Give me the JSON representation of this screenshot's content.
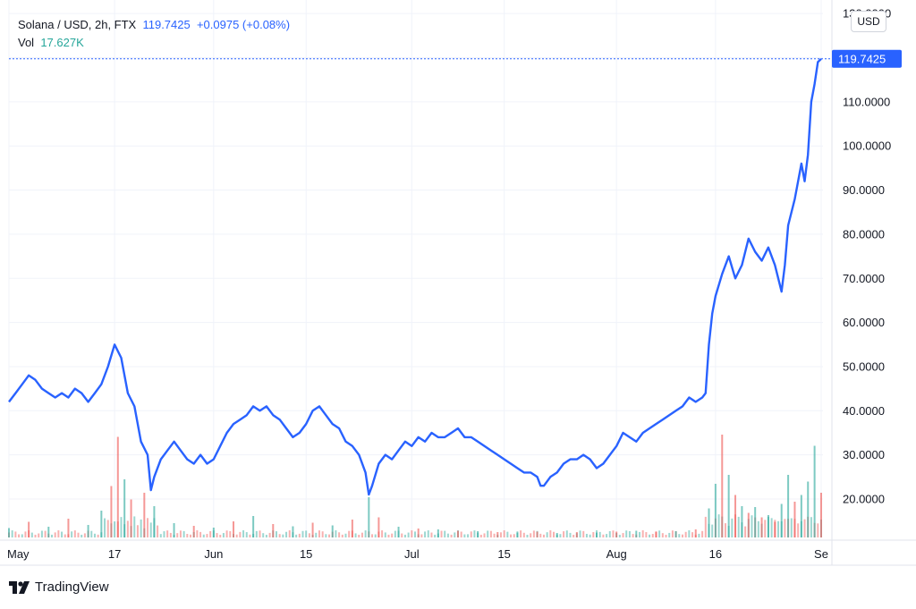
{
  "legend": {
    "symbol": "Solana / USD, 2h, FTX",
    "last": "119.7425",
    "change": "+0.0975 (+0.08%)",
    "vol_label": "Vol",
    "vol_value": "17.627K"
  },
  "currency_button": "USD",
  "last_price_label": "119.7425",
  "brand": "TradingView",
  "colors": {
    "line": "#2962ff",
    "grid": "#f0f3fa",
    "up_volume": "#26a69a",
    "down_volume": "#ef5350",
    "price_tag": "#2962ff"
  },
  "chart_data": {
    "type": "line",
    "title": "Solana / USD, 2h, FTX",
    "xlabel": "",
    "ylabel": "",
    "y_ticks": [
      "20.0000",
      "30.0000",
      "40.0000",
      "50.0000",
      "60.0000",
      "70.0000",
      "80.0000",
      "90.0000",
      "100.0000",
      "110.0000",
      "130.0000"
    ],
    "ylim": [
      11,
      131
    ],
    "x_ticks": [
      {
        "label": "May",
        "day": 0
      },
      {
        "label": "17",
        "day": 16
      },
      {
        "label": "Jun",
        "day": 31
      },
      {
        "label": "15",
        "day": 45
      },
      {
        "label": "Jul",
        "day": 61
      },
      {
        "label": "15",
        "day": 75
      },
      {
        "label": "Aug",
        "day": 92
      },
      {
        "label": "16",
        "day": 107
      },
      {
        "label": "Se",
        "day": 123
      }
    ],
    "xlim": [
      0,
      123
    ],
    "grid": true,
    "series": [
      {
        "values": [
          [
            0,
            42
          ],
          [
            1,
            44
          ],
          [
            2,
            46
          ],
          [
            3,
            48
          ],
          [
            4,
            47
          ],
          [
            5,
            45
          ],
          [
            6,
            44
          ],
          [
            7,
            43
          ],
          [
            8,
            44
          ],
          [
            9,
            43
          ],
          [
            10,
            45
          ],
          [
            11,
            44
          ],
          [
            12,
            42
          ],
          [
            13,
            44
          ],
          [
            14,
            46
          ],
          [
            15,
            50
          ],
          [
            16,
            55
          ],
          [
            17,
            52
          ],
          [
            18,
            44
          ],
          [
            19,
            41
          ],
          [
            20,
            33
          ],
          [
            21,
            30
          ],
          [
            21.5,
            22
          ],
          [
            22,
            25
          ],
          [
            23,
            29
          ],
          [
            24,
            31
          ],
          [
            25,
            33
          ],
          [
            26,
            31
          ],
          [
            27,
            29
          ],
          [
            28,
            28
          ],
          [
            29,
            30
          ],
          [
            30,
            28
          ],
          [
            31,
            29
          ],
          [
            32,
            32
          ],
          [
            33,
            35
          ],
          [
            34,
            37
          ],
          [
            35,
            38
          ],
          [
            36,
            39
          ],
          [
            37,
            41
          ],
          [
            38,
            40
          ],
          [
            39,
            41
          ],
          [
            40,
            39
          ],
          [
            41,
            38
          ],
          [
            42,
            36
          ],
          [
            43,
            34
          ],
          [
            44,
            35
          ],
          [
            45,
            37
          ],
          [
            46,
            40
          ],
          [
            47,
            41
          ],
          [
            48,
            39
          ],
          [
            49,
            37
          ],
          [
            50,
            36
          ],
          [
            51,
            33
          ],
          [
            52,
            32
          ],
          [
            53,
            30
          ],
          [
            54,
            26
          ],
          [
            54.5,
            21
          ],
          [
            55,
            23
          ],
          [
            56,
            28
          ],
          [
            57,
            30
          ],
          [
            58,
            29
          ],
          [
            59,
            31
          ],
          [
            60,
            33
          ],
          [
            61,
            32
          ],
          [
            62,
            34
          ],
          [
            63,
            33
          ],
          [
            64,
            35
          ],
          [
            65,
            34
          ],
          [
            66,
            34
          ],
          [
            67,
            35
          ],
          [
            68,
            36
          ],
          [
            69,
            34
          ],
          [
            70,
            34
          ],
          [
            71,
            33
          ],
          [
            72,
            32
          ],
          [
            73,
            31
          ],
          [
            74,
            30
          ],
          [
            75,
            29
          ],
          [
            76,
            28
          ],
          [
            77,
            27
          ],
          [
            78,
            26
          ],
          [
            79,
            26
          ],
          [
            80,
            25
          ],
          [
            80.5,
            23
          ],
          [
            81,
            23
          ],
          [
            82,
            25
          ],
          [
            83,
            26
          ],
          [
            84,
            28
          ],
          [
            85,
            29
          ],
          [
            86,
            29
          ],
          [
            87,
            30
          ],
          [
            88,
            29
          ],
          [
            89,
            27
          ],
          [
            90,
            28
          ],
          [
            91,
            30
          ],
          [
            92,
            32
          ],
          [
            93,
            35
          ],
          [
            94,
            34
          ],
          [
            95,
            33
          ],
          [
            96,
            35
          ],
          [
            97,
            36
          ],
          [
            98,
            37
          ],
          [
            99,
            38
          ],
          [
            100,
            39
          ],
          [
            101,
            40
          ],
          [
            102,
            41
          ],
          [
            103,
            43
          ],
          [
            104,
            42
          ],
          [
            105,
            43
          ],
          [
            105.5,
            44
          ],
          [
            106,
            55
          ],
          [
            106.5,
            62
          ],
          [
            107,
            66
          ],
          [
            108,
            71
          ],
          [
            109,
            75
          ],
          [
            110,
            70
          ],
          [
            111,
            73
          ],
          [
            112,
            79
          ],
          [
            113,
            76
          ],
          [
            114,
            74
          ],
          [
            115,
            77
          ],
          [
            116,
            73
          ],
          [
            117,
            67
          ],
          [
            117.5,
            73
          ],
          [
            118,
            82
          ],
          [
            119,
            88
          ],
          [
            120,
            96
          ],
          [
            120.5,
            92
          ],
          [
            121,
            98
          ],
          [
            121.5,
            110
          ],
          [
            122,
            114
          ],
          [
            122.5,
            119
          ],
          [
            123,
            119.74
          ]
        ]
      }
    ],
    "volume": {
      "description_color_up": "#26a69a",
      "description_color_down": "#ef5350",
      "bars": [
        [
          0,
          2.1,
          "u"
        ],
        [
          3,
          3.5,
          "d"
        ],
        [
          6,
          2.4,
          "u"
        ],
        [
          9,
          4.2,
          "d"
        ],
        [
          12,
          2.8,
          "u"
        ],
        [
          14,
          6.0,
          "u"
        ],
        [
          15.5,
          11.5,
          "d"
        ],
        [
          16.5,
          22.5,
          "d"
        ],
        [
          17.5,
          13.0,
          "u"
        ],
        [
          18.5,
          8.5,
          "d"
        ],
        [
          20.5,
          10.0,
          "d"
        ],
        [
          22,
          7.0,
          "u"
        ],
        [
          25,
          3.2,
          "u"
        ],
        [
          28,
          2.6,
          "d"
        ],
        [
          31,
          2.2,
          "u"
        ],
        [
          34,
          3.6,
          "d"
        ],
        [
          37,
          4.8,
          "u"
        ],
        [
          40,
          3.0,
          "d"
        ],
        [
          43,
          2.5,
          "u"
        ],
        [
          46,
          3.3,
          "d"
        ],
        [
          49,
          2.7,
          "u"
        ],
        [
          52,
          4.0,
          "d"
        ],
        [
          54.5,
          9.0,
          "u"
        ],
        [
          56,
          4.5,
          "d"
        ],
        [
          59,
          2.4,
          "u"
        ],
        [
          62,
          2.0,
          "d"
        ],
        [
          65,
          1.8,
          "u"
        ],
        [
          68,
          1.5,
          "d"
        ],
        [
          71,
          1.4,
          "u"
        ],
        [
          74,
          1.2,
          "d"
        ],
        [
          77,
          1.1,
          "u"
        ],
        [
          80,
          1.3,
          "d"
        ],
        [
          83,
          1.0,
          "u"
        ],
        [
          86,
          1.2,
          "d"
        ],
        [
          89,
          1.1,
          "u"
        ],
        [
          92,
          1.3,
          "d"
        ],
        [
          95,
          1.5,
          "u"
        ],
        [
          98,
          1.2,
          "d"
        ],
        [
          101,
          1.4,
          "u"
        ],
        [
          104,
          1.8,
          "d"
        ],
        [
          106,
          6.5,
          "u"
        ],
        [
          107,
          12.0,
          "u"
        ],
        [
          108,
          23.0,
          "d"
        ],
        [
          109,
          14.0,
          "u"
        ],
        [
          110,
          9.5,
          "d"
        ],
        [
          111,
          7.0,
          "u"
        ],
        [
          112,
          5.5,
          "d"
        ],
        [
          113,
          6.8,
          "u"
        ],
        [
          114,
          4.5,
          "d"
        ],
        [
          115,
          5.0,
          "u"
        ],
        [
          116,
          3.5,
          "d"
        ],
        [
          117,
          7.5,
          "u"
        ],
        [
          118,
          14.0,
          "u"
        ],
        [
          119,
          8.0,
          "d"
        ],
        [
          120,
          9.5,
          "u"
        ],
        [
          121,
          12.5,
          "u"
        ],
        [
          122,
          20.5,
          "u"
        ],
        [
          123,
          10.0,
          "d"
        ]
      ]
    }
  }
}
